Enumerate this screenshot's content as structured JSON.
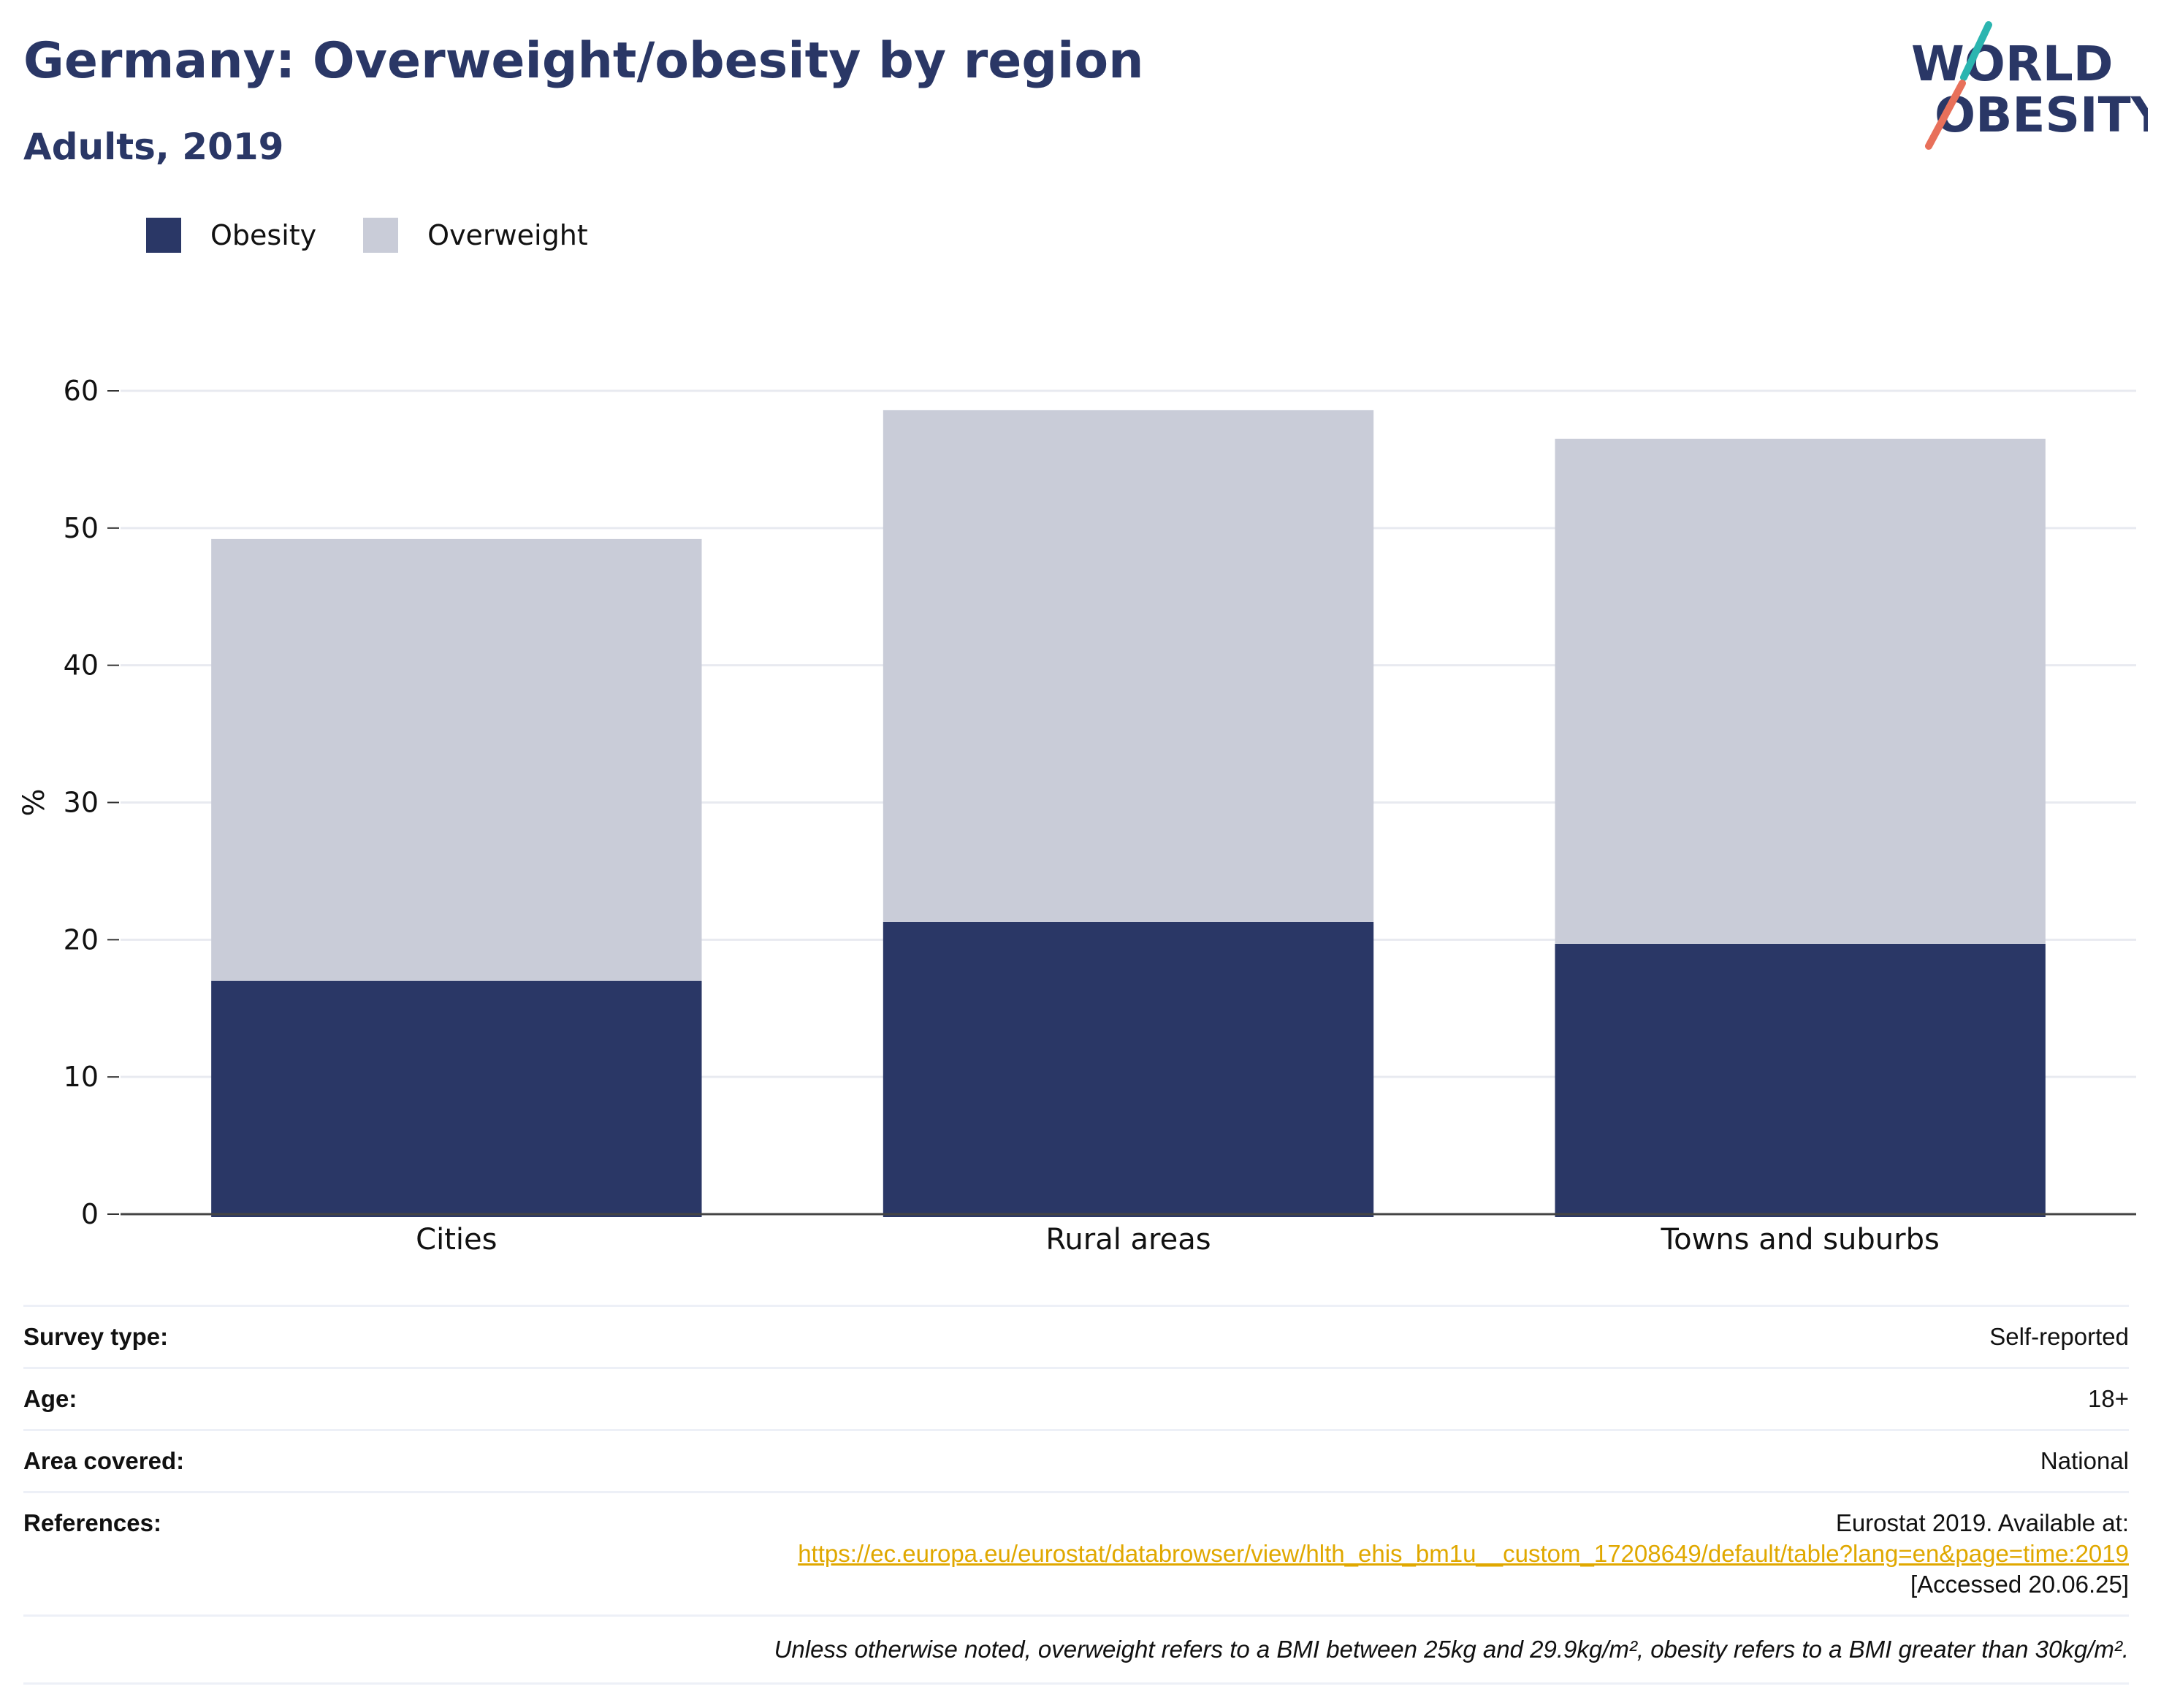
{
  "header": {
    "title": "Germany: Overweight/obesity by region",
    "subtitle": "Adults, 2019"
  },
  "logo": {
    "line1": "WORLD",
    "line2": "OBESITY",
    "colors": {
      "text": "#2a3766",
      "slash_top": "#2bb5b0",
      "slash_bottom": "#e8705a"
    }
  },
  "legend": [
    {
      "label": "Obesity",
      "color": "#2a3766"
    },
    {
      "label": "Overweight",
      "color": "#c9ccd8"
    }
  ],
  "chart_data": {
    "type": "bar",
    "stacked": true,
    "categories": [
      "Cities",
      "Rural areas",
      "Towns and suburbs"
    ],
    "series": [
      {
        "name": "Obesity",
        "values": [
          17.0,
          21.3,
          19.7
        ],
        "color": "#2a3766"
      },
      {
        "name": "Overweight",
        "values": [
          32.2,
          37.3,
          36.8
        ],
        "color": "#c9ccd8"
      }
    ],
    "totals": [
      49.2,
      58.6,
      56.5
    ],
    "ylabel": "%",
    "ylim": [
      0,
      60
    ],
    "yticks": [
      0,
      10,
      20,
      30,
      40,
      50,
      60
    ],
    "grid": true,
    "legend_position": "top-left"
  },
  "info": {
    "survey_type": {
      "label": "Survey type:",
      "value": "Self-reported"
    },
    "age": {
      "label": "Age:",
      "value": "18+"
    },
    "area_covered": {
      "label": "Area covered:",
      "value": "National"
    },
    "references": {
      "label": "References:",
      "line1": "Eurostat 2019. Available at:",
      "link": "https://ec.europa.eu/eurostat/databrowser/view/hlth_ehis_bm1u__custom_17208649/default/table?lang=en&page=time:2019",
      "line3": "[Accessed 20.06.25]"
    },
    "note": "Unless otherwise noted, overweight refers to a BMI between 25kg and 29.9kg/m², obesity refers to a BMI greater than 30kg/m²."
  }
}
